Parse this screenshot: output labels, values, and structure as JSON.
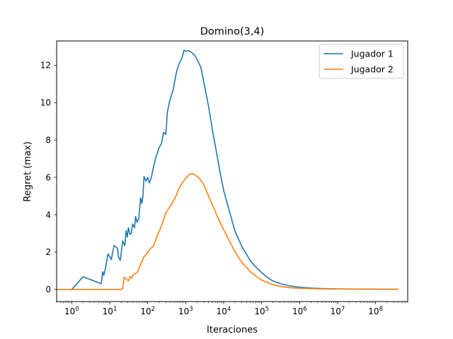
{
  "chart_data": {
    "type": "line",
    "title": "Domino(3,4)",
    "xlabel": "Iteraciones",
    "ylabel": "Regret (max)",
    "xscale": "log",
    "xlim": [
      0.4,
      700000000
    ],
    "ylim": [
      -0.65,
      13.3
    ],
    "grid": false,
    "legend_position": "top-right",
    "x_ticks": [
      {
        "value": 1,
        "base": "10",
        "exp": "0"
      },
      {
        "value": 10,
        "base": "10",
        "exp": "1"
      },
      {
        "value": 100,
        "base": "10",
        "exp": "2"
      },
      {
        "value": 1000,
        "base": "10",
        "exp": "3"
      },
      {
        "value": 10000,
        "base": "10",
        "exp": "4"
      },
      {
        "value": 100000,
        "base": "10",
        "exp": "5"
      },
      {
        "value": 1000000,
        "base": "10",
        "exp": "6"
      },
      {
        "value": 10000000,
        "base": "10",
        "exp": "7"
      },
      {
        "value": 100000000,
        "base": "10",
        "exp": "8"
      }
    ],
    "y_ticks": [
      {
        "value": 0,
        "label": "0"
      },
      {
        "value": 2,
        "label": "2"
      },
      {
        "value": 4,
        "label": "4"
      },
      {
        "value": 6,
        "label": "6"
      },
      {
        "value": 8,
        "label": "8"
      },
      {
        "value": 10,
        "label": "10"
      },
      {
        "value": 12,
        "label": "12"
      }
    ],
    "series": [
      {
        "name": "Jugador 1",
        "color": "#1f77b4",
        "points": [
          [
            0.4,
            0
          ],
          [
            1,
            0
          ],
          [
            2,
            0.68
          ],
          [
            6,
            0.3
          ],
          [
            6.5,
            0.95
          ],
          [
            7,
            0.75
          ],
          [
            7.5,
            1.0
          ],
          [
            9,
            1.9
          ],
          [
            10,
            1.75
          ],
          [
            11,
            1.6
          ],
          [
            13,
            2.35
          ],
          [
            16,
            2.2
          ],
          [
            17,
            1.75
          ],
          [
            19,
            1.55
          ],
          [
            22,
            2.6
          ],
          [
            25,
            2.35
          ],
          [
            27,
            3.15
          ],
          [
            29,
            2.8
          ],
          [
            31,
            3.3
          ],
          [
            34,
            2.95
          ],
          [
            37,
            3.0
          ],
          [
            40,
            3.5
          ],
          [
            45,
            3.3
          ],
          [
            48,
            3.9
          ],
          [
            52,
            3.6
          ],
          [
            58,
            3.75
          ],
          [
            65,
            4.9
          ],
          [
            70,
            4.6
          ],
          [
            75,
            5.0
          ],
          [
            80,
            6.05
          ],
          [
            90,
            5.8
          ],
          [
            100,
            6.0
          ],
          [
            110,
            5.7
          ],
          [
            125,
            6.0
          ],
          [
            140,
            6.5
          ],
          [
            160,
            7.0
          ],
          [
            180,
            7.3
          ],
          [
            200,
            7.6
          ],
          [
            230,
            7.8
          ],
          [
            260,
            8.4
          ],
          [
            300,
            8.3
          ],
          [
            330,
            9.5
          ],
          [
            370,
            10.0
          ],
          [
            420,
            10.4
          ],
          [
            470,
            10.7
          ],
          [
            520,
            11.2
          ],
          [
            580,
            11.7
          ],
          [
            650,
            12.0
          ],
          [
            720,
            12.2
          ],
          [
            800,
            12.4
          ],
          [
            900,
            12.8
          ],
          [
            1000,
            12.75
          ],
          [
            1200,
            12.78
          ],
          [
            1400,
            12.7
          ],
          [
            1700,
            12.55
          ],
          [
            2000,
            12.3
          ],
          [
            2500,
            11.9
          ],
          [
            3000,
            11.1
          ],
          [
            3500,
            10.4
          ],
          [
            4000,
            9.8
          ],
          [
            5000,
            8.6
          ],
          [
            6000,
            7.7
          ],
          [
            8000,
            6.3
          ],
          [
            10000,
            5.3
          ],
          [
            15000,
            4.0
          ],
          [
            20000,
            3.1
          ],
          [
            30000,
            2.3
          ],
          [
            50000,
            1.55
          ],
          [
            70000,
            1.2
          ],
          [
            100000,
            0.9
          ],
          [
            150000,
            0.6
          ],
          [
            200000,
            0.45
          ],
          [
            300000,
            0.32
          ],
          [
            500000,
            0.2
          ],
          [
            1000000,
            0.12
          ],
          [
            2000000,
            0.07
          ],
          [
            5000000,
            0.04
          ],
          [
            10000000,
            0.03
          ],
          [
            30000000,
            0.02
          ],
          [
            100000000,
            0.015
          ],
          [
            400000000,
            0.01
          ]
        ]
      },
      {
        "name": "Jugador 2",
        "color": "#ff7f0e",
        "points": [
          [
            0.4,
            0
          ],
          [
            20,
            0
          ],
          [
            22,
            0.05
          ],
          [
            24,
            0.65
          ],
          [
            28,
            0.55
          ],
          [
            31,
            0.45
          ],
          [
            34,
            0.7
          ],
          [
            38,
            0.6
          ],
          [
            42,
            0.8
          ],
          [
            48,
            0.85
          ],
          [
            55,
            0.95
          ],
          [
            62,
            1.25
          ],
          [
            70,
            1.5
          ],
          [
            80,
            1.75
          ],
          [
            90,
            1.85
          ],
          [
            100,
            2.0
          ],
          [
            120,
            2.2
          ],
          [
            140,
            2.3
          ],
          [
            160,
            2.6
          ],
          [
            180,
            2.9
          ],
          [
            210,
            3.2
          ],
          [
            250,
            3.6
          ],
          [
            300,
            4.1
          ],
          [
            350,
            4.3
          ],
          [
            400,
            4.5
          ],
          [
            470,
            4.7
          ],
          [
            550,
            5.0
          ],
          [
            650,
            5.35
          ],
          [
            800,
            5.7
          ],
          [
            1000,
            5.95
          ],
          [
            1300,
            6.18
          ],
          [
            1600,
            6.18
          ],
          [
            2000,
            6.05
          ],
          [
            2500,
            5.85
          ],
          [
            3000,
            5.6
          ],
          [
            4000,
            5.0
          ],
          [
            5000,
            4.55
          ],
          [
            7000,
            3.85
          ],
          [
            10000,
            3.2
          ],
          [
            15000,
            2.5
          ],
          [
            20000,
            2.0
          ],
          [
            30000,
            1.45
          ],
          [
            50000,
            0.95
          ],
          [
            70000,
            0.72
          ],
          [
            100000,
            0.5
          ],
          [
            150000,
            0.35
          ],
          [
            200000,
            0.25
          ],
          [
            300000,
            0.17
          ],
          [
            500000,
            0.1
          ],
          [
            1000000,
            0.06
          ],
          [
            3000000,
            0.03
          ],
          [
            10000000,
            0.02
          ],
          [
            100000000,
            0.01
          ],
          [
            400000000,
            0.005
          ]
        ]
      }
    ]
  }
}
